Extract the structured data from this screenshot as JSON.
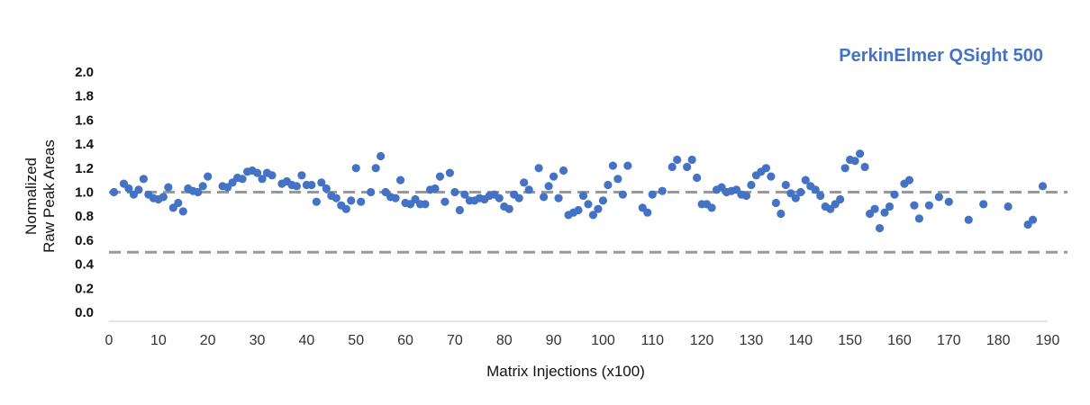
{
  "chart_data": {
    "type": "scatter",
    "title": "PerkinElmer QSight 500",
    "xlabel": "Matrix Injections (x100)",
    "ylabel_lines": [
      "Normalized",
      "Raw Peak Areas"
    ],
    "xlim": [
      0,
      190
    ],
    "ylim": [
      0,
      2.0
    ],
    "x_ticks": [
      0,
      10,
      20,
      30,
      40,
      50,
      60,
      70,
      80,
      90,
      100,
      110,
      120,
      130,
      140,
      150,
      160,
      170,
      180,
      190
    ],
    "y_ticks": [
      "0.0",
      "0.2",
      "0.4",
      "0.6",
      "0.8",
      "1.0",
      "1.2",
      "1.4",
      "1.6",
      "1.8",
      "2.0"
    ],
    "reference_lines": [
      1.0,
      0.5
    ],
    "grid": false,
    "colors": {
      "points": "#4472C4",
      "title": "#4472C4",
      "reference": "#999999",
      "axis": "#cccccc"
    },
    "series": [
      {
        "x": [
          1,
          3,
          4,
          5,
          6,
          7,
          8,
          9,
          10,
          11,
          12,
          13,
          14,
          15,
          16,
          17,
          18,
          19,
          20,
          23,
          24,
          25,
          26,
          27,
          28,
          29,
          30,
          31,
          32,
          33,
          35,
          36,
          37,
          38,
          39,
          40,
          41,
          42,
          43,
          44,
          45,
          46,
          47,
          48,
          49,
          50,
          51,
          53,
          54,
          55,
          56,
          57,
          58,
          59,
          60,
          61,
          62,
          63,
          64,
          65,
          66,
          67,
          68,
          69,
          70,
          71,
          72,
          73,
          74,
          75,
          76,
          77,
          78,
          79,
          80,
          81,
          82,
          83,
          84,
          85,
          87,
          88,
          89,
          90,
          91,
          92,
          93,
          94,
          95,
          96,
          97,
          98,
          99,
          100,
          101,
          102,
          103,
          104,
          105,
          108,
          109,
          110,
          112,
          114,
          115,
          117,
          118,
          119,
          120,
          121,
          122,
          123,
          124,
          125,
          126,
          127,
          128,
          129,
          130,
          131,
          132,
          133,
          134,
          135,
          136,
          137,
          138,
          139,
          140,
          141,
          142,
          143,
          144,
          145,
          146,
          147,
          148,
          149,
          150,
          151,
          152,
          153,
          154,
          155,
          156,
          157,
          158,
          159,
          161,
          162,
          163,
          164,
          166,
          168,
          170,
          174,
          177,
          182,
          186,
          187,
          189
        ],
        "y": [
          1.0,
          1.07,
          1.03,
          0.98,
          1.02,
          1.11,
          0.98,
          0.95,
          0.94,
          0.96,
          1.04,
          0.87,
          0.91,
          0.84,
          1.03,
          1.01,
          1.0,
          1.05,
          1.13,
          1.05,
          1.04,
          1.08,
          1.12,
          1.11,
          1.17,
          1.18,
          1.16,
          1.11,
          1.16,
          1.14,
          1.07,
          1.09,
          1.06,
          1.05,
          1.14,
          1.06,
          1.06,
          0.92,
          1.08,
          1.03,
          0.97,
          0.95,
          0.89,
          0.86,
          0.93,
          1.2,
          0.92,
          1.0,
          1.2,
          1.3,
          1.0,
          0.96,
          0.95,
          1.1,
          0.91,
          0.9,
          0.94,
          0.9,
          0.9,
          1.02,
          1.03,
          1.13,
          0.92,
          1.16,
          1.0,
          0.85,
          0.98,
          0.93,
          0.93,
          0.95,
          0.94,
          0.97,
          0.98,
          0.95,
          0.88,
          0.86,
          0.98,
          0.95,
          1.08,
          1.02,
          1.2,
          0.96,
          1.05,
          1.13,
          0.95,
          1.18,
          0.81,
          0.83,
          0.85,
          0.97,
          0.9,
          0.81,
          0.86,
          0.93,
          1.06,
          1.22,
          1.11,
          0.98,
          1.22,
          0.87,
          0.83,
          0.98,
          1.01,
          1.21,
          1.27,
          1.21,
          1.27,
          1.12,
          0.9,
          0.9,
          0.87,
          1.02,
          1.04,
          1.0,
          1.01,
          1.02,
          0.98,
          0.97,
          1.06,
          1.14,
          1.17,
          1.2,
          1.13,
          0.91,
          0.82,
          1.06,
          0.99,
          0.95,
          1.0,
          1.1,
          1.05,
          1.02,
          0.97,
          0.88,
          0.86,
          0.9,
          0.94,
          1.2,
          1.27,
          1.26,
          1.32,
          1.21,
          0.82,
          0.86,
          0.7,
          0.83,
          0.88,
          0.98,
          1.07,
          1.1,
          0.89,
          0.78,
          0.89,
          0.96,
          0.92,
          0.77,
          0.9,
          0.88,
          0.73,
          0.77,
          1.05
        ]
      }
    ]
  }
}
